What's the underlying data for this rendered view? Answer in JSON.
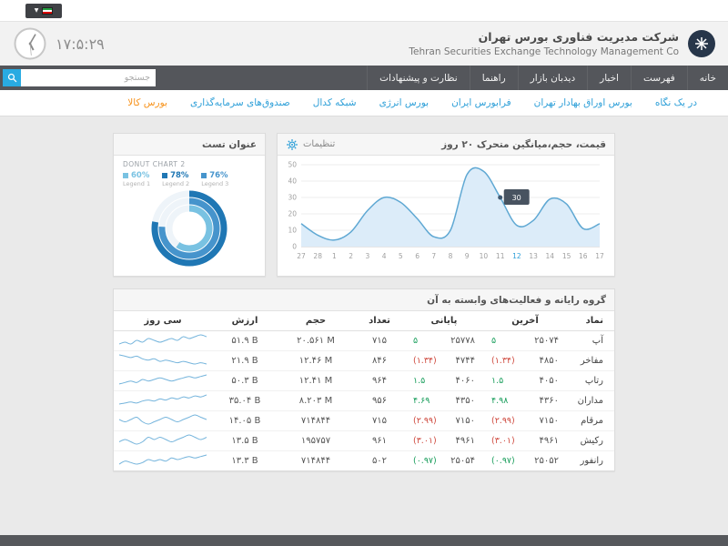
{
  "top_bar": {
    "language_selector_caret": "▼"
  },
  "header": {
    "title_fa": "شرکت مدیریت فناوری بورس تهران",
    "title_en": "Tehran Securities Exchange Technology Management Co",
    "clock_time": "۱۷:۵:۲۹"
  },
  "nav": {
    "items": [
      "خانه",
      "فهرست",
      "اخبار",
      "دیدبان بازار",
      "راهنما",
      "نظارت و پیشنهادات"
    ],
    "search_placeholder": "جستجو"
  },
  "subnav": {
    "items": [
      {
        "label": "در یک نگاه",
        "highlight": false
      },
      {
        "label": "بورس اوراق بهادار تهران",
        "highlight": false
      },
      {
        "label": "فرابورس ایران",
        "highlight": false
      },
      {
        "label": "بورس انرژی",
        "highlight": false
      },
      {
        "label": "شبکه کدال",
        "highlight": false
      },
      {
        "label": "صندوق‌های سرمایه‌گذاری",
        "highlight": false
      },
      {
        "label": "بورس کالا",
        "highlight": true
      }
    ]
  },
  "chart_panel": {
    "settings_label": "تنظیمات"
  },
  "donut_panel": {
    "title": "عنوان تست"
  },
  "chart_data": [
    {
      "type": "area",
      "title": "قیمت، حجم،میانگین متحرک ۲۰ روز",
      "x": [
        "27",
        "28",
        "1",
        "2",
        "3",
        "4",
        "5",
        "6",
        "7",
        "8",
        "9",
        "10",
        "11",
        "12",
        "13",
        "14",
        "15",
        "16",
        "17"
      ],
      "values": [
        14,
        7,
        4,
        9,
        22,
        30,
        27,
        17,
        6,
        10,
        44,
        46,
        30,
        13,
        16,
        29,
        26,
        11,
        14
      ],
      "ylim": [
        0,
        50
      ],
      "yticks": [
        0,
        10,
        20,
        30,
        40,
        50
      ],
      "highlight_x": "12",
      "tooltip_index": 12,
      "line_color": "#5fa8d3",
      "fill_color": "#dcecf9",
      "accent_color": "#2d9fd8",
      "grid": true,
      "legend_position": "none"
    },
    {
      "type": "donut",
      "title": "DONUT CHART 2",
      "series": [
        {
          "label": "Legend 1",
          "value": 60,
          "display": "60%",
          "color": "#79c2e2"
        },
        {
          "label": "Legend 2",
          "value": 78,
          "display": "78%",
          "color": "#1f77b4"
        },
        {
          "label": "Legend 3",
          "value": 76,
          "display": "76%",
          "color": "#4694cc"
        }
      ],
      "legend_position": "top"
    }
  ],
  "table_panel": {
    "title": "گروه رایانه و فعالیت‌های وابسته به آن",
    "columns": [
      "نماد",
      "آخرین",
      "پایانی",
      "تعداد",
      "حجم",
      "ارزش",
      "سی روز"
    ],
    "colors": {
      "up": "#1a9e5c",
      "down": "#cf4a3f"
    },
    "rows": [
      {
        "symbol": "آپ",
        "last": "۲۵۰۷۴",
        "last_chg": "۵",
        "last_dir": "up",
        "close": "۲۵۷۷۸",
        "close_chg": "۵",
        "close_dir": "up",
        "count": "۷۱۵",
        "volume": "۲۰.۵۶۱ M",
        "value": "۵۱.۹ B",
        "spark": [
          4,
          4.5,
          4,
          5,
          4.5,
          5.5,
          5,
          4.5,
          5,
          5.5,
          5,
          6,
          5.5,
          6,
          6.5,
          6
        ]
      },
      {
        "symbol": "مفاخر",
        "last": "۴۸۵۰",
        "last_chg": "(۱.۳۴)",
        "last_dir": "down",
        "close": "۴۷۴۴",
        "close_chg": "(۱.۳۴)",
        "close_dir": "down",
        "count": "۸۴۶",
        "volume": "۱۲.۴۶ M",
        "value": "۲۱.۹ B",
        "spark": [
          6,
          5.5,
          5,
          5.5,
          4.5,
          4,
          4.5,
          3.5,
          4,
          3.5,
          3,
          3.5,
          3,
          2.5,
          3,
          2.5
        ]
      },
      {
        "symbol": "رتاپ",
        "last": "۴۰۵۰",
        "last_chg": "۱.۵",
        "last_dir": "up",
        "close": "۴۰۶۰",
        "close_chg": "۱.۵",
        "close_dir": "up",
        "count": "۹۶۴",
        "volume": "۱۲.۴۱ M",
        "value": "۵۰.۳ B",
        "spark": [
          4,
          4.5,
          5,
          4.5,
          5.5,
          5,
          5.5,
          6,
          5.5,
          5,
          5.5,
          6,
          6.5,
          6,
          6.5,
          7
        ]
      },
      {
        "symbol": "مداران",
        "last": "۴۳۶۰",
        "last_chg": "۴.۹۸",
        "last_dir": "up",
        "close": "۴۳۵۰",
        "close_chg": "۴.۶۹",
        "close_dir": "up",
        "count": "۹۵۶",
        "volume": "۸.۲۰۳ M",
        "value": "۳۵.۰۴ B",
        "spark": [
          2.5,
          3,
          3.5,
          3,
          4,
          4.5,
          4,
          5,
          4.5,
          5.5,
          5,
          6,
          5.5,
          6.5,
          6,
          7
        ]
      },
      {
        "symbol": "مرقام",
        "last": "۷۱۵۰",
        "last_chg": "(۲.۹۹)",
        "last_dir": "down",
        "close": "۷۱۵۰",
        "close_chg": "(۲.۹۹)",
        "close_dir": "down",
        "count": "۷۱۵",
        "volume": "۷۱۴۸۴۴",
        "value": "۱۴.۰۵ B",
        "spark": [
          5,
          4.5,
          5,
          5.5,
          4.5,
          4,
          4.5,
          5,
          5.5,
          5,
          4.5,
          5,
          5.5,
          6,
          5.5,
          5
        ]
      },
      {
        "symbol": "رکیش",
        "last": "۴۹۶۱",
        "last_chg": "(۳.۰۱)",
        "last_dir": "down",
        "close": "۴۹۶۱",
        "close_chg": "(۳.۰۱)",
        "close_dir": "down",
        "count": "۹۶۱",
        "volume": "۱۹۵۷۵۷",
        "value": "۱۳.۵ B",
        "spark": [
          3.5,
          4,
          3.5,
          3,
          3.5,
          4.5,
          4,
          4.5,
          4,
          3.5,
          4,
          4.5,
          5,
          4.5,
          4,
          4.5
        ]
      },
      {
        "symbol": "رانفور",
        "last": "۲۵۰۵۲",
        "last_chg": "(۰.۹۷)",
        "last_dir": "up",
        "close": "۲۵۰۵۴",
        "close_chg": "(۰.۹۷)",
        "close_dir": "up",
        "count": "۵۰۲",
        "volume": "۷۱۴۸۴۴",
        "value": "۱۳.۳ B",
        "spark": [
          4,
          5,
          4.5,
          4,
          4.5,
          5.5,
          5,
          5.5,
          5,
          6,
          5.5,
          6,
          6.5,
          6,
          6.5,
          7
        ]
      }
    ]
  }
}
